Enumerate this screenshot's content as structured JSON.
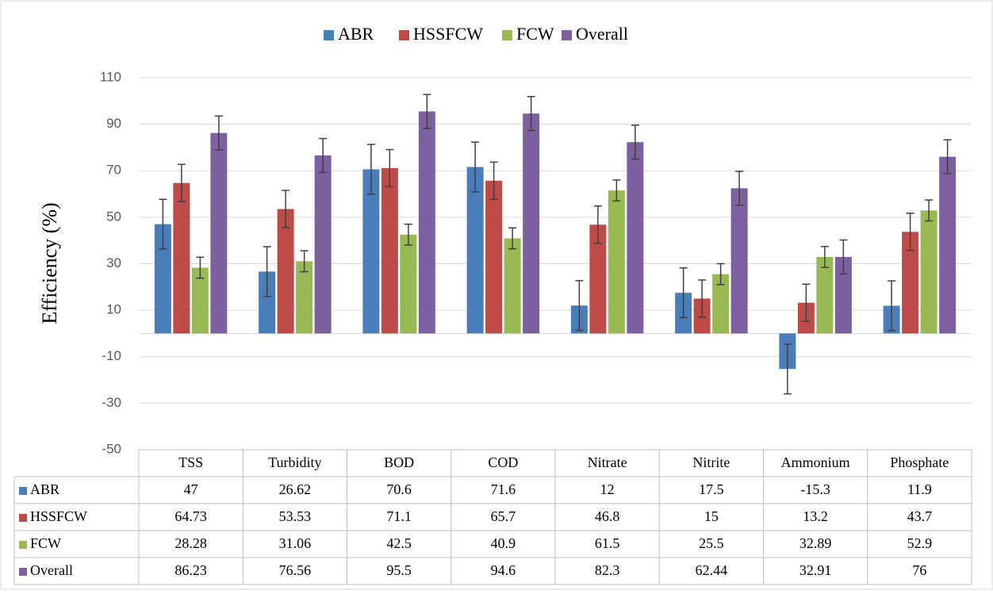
{
  "chart_data": {
    "type": "bar",
    "y_label": "Efficiency (%)",
    "categories": [
      "TSS",
      "Turbidity",
      "BOD",
      "COD",
      "Nitrate",
      "Nitrite",
      "Ammonium",
      "Phosphate"
    ],
    "series": [
      {
        "name": "ABR",
        "color": "#4a7ebb",
        "values": [
          47,
          26.62,
          70.6,
          71.6,
          12,
          17.5,
          -15.3,
          11.9
        ],
        "errors": [
          10.7,
          10.7,
          10.7,
          10.7,
          10.7,
          10.7,
          10.7,
          10.7
        ]
      },
      {
        "name": "HSSFCW",
        "color": "#be4b48",
        "values": [
          64.73,
          53.53,
          71.1,
          65.7,
          46.8,
          15,
          13.2,
          43.7
        ],
        "errors": [
          8,
          8,
          8,
          8,
          8,
          8,
          8,
          8
        ]
      },
      {
        "name": "FCW",
        "color": "#98b954",
        "values": [
          28.28,
          31.06,
          42.5,
          40.9,
          61.5,
          25.5,
          32.89,
          52.9
        ],
        "errors": [
          4.5,
          4.5,
          4.5,
          4.5,
          4.5,
          4.5,
          4.5,
          4.5
        ]
      },
      {
        "name": "Overall",
        "color": "#7d60a0",
        "values": [
          86.23,
          76.56,
          95.5,
          94.6,
          82.3,
          62.44,
          32.91,
          76
        ],
        "errors": [
          7.3,
          7.3,
          7.3,
          7.3,
          7.3,
          7.3,
          7.3,
          7.3
        ]
      }
    ],
    "ylim": [
      -50,
      110
    ],
    "yticks": [
      -50,
      -30,
      -10,
      10,
      30,
      50,
      70,
      90,
      110
    ],
    "grid": true,
    "legend": "top"
  }
}
